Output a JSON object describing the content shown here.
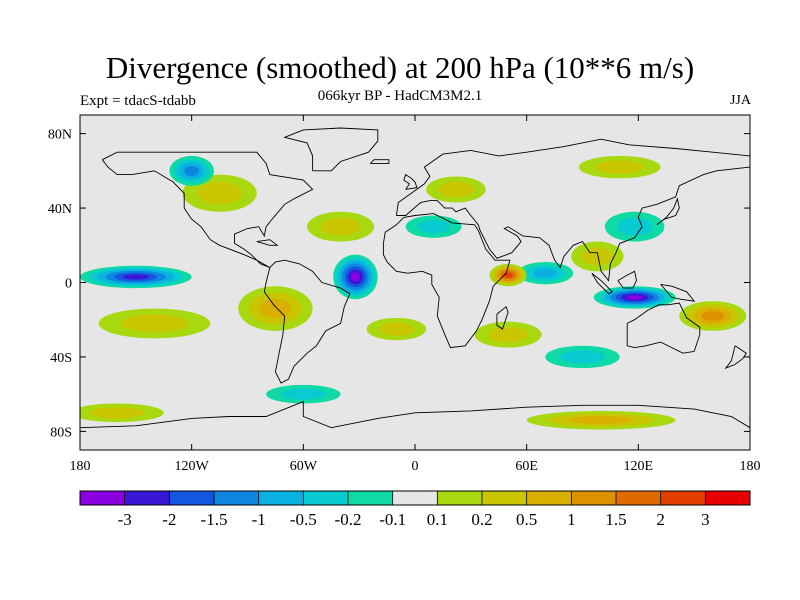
{
  "header": {
    "title": "Divergence (smoothed) at 200 hPa (10**6 m/s)",
    "subtitle": "066kyr BP - HadCM3M2.1",
    "experiment": "Expt = tdacS-tdabb",
    "season": "JJA"
  },
  "map_data": {
    "type": "filled-contour-map",
    "projection": "cylindrical-equidistant",
    "lon_range": [
      -180,
      180
    ],
    "lat_range": [
      -90,
      90
    ],
    "x_ticks": [
      {
        "lon": -180,
        "label": "180"
      },
      {
        "lon": -120,
        "label": "120W"
      },
      {
        "lon": -60,
        "label": "60W"
      },
      {
        "lon": 0,
        "label": "0"
      },
      {
        "lon": 60,
        "label": "60E"
      },
      {
        "lon": 120,
        "label": "120E"
      },
      {
        "lon": 180,
        "label": "180"
      }
    ],
    "y_ticks": [
      {
        "lat": 80,
        "label": "80N"
      },
      {
        "lat": 40,
        "label": "40N"
      },
      {
        "lat": 0,
        "label": "0"
      },
      {
        "lat": -40,
        "label": "40S"
      },
      {
        "lat": -80,
        "label": "80S"
      }
    ],
    "features": [
      {
        "name": "negative-pacific-east",
        "lon": -150,
        "lat": 3,
        "rlon": 30,
        "rlat": 6,
        "level": 1
      },
      {
        "name": "negative-atlantic",
        "lon": -32,
        "lat": 3,
        "rlon": 12,
        "rlat": 12,
        "level": 0
      },
      {
        "name": "negative-maritime",
        "lon": 118,
        "lat": -8,
        "rlon": 22,
        "rlat": 6,
        "level": 0
      },
      {
        "name": "negative-indian",
        "lon": 70,
        "lat": 5,
        "rlon": 15,
        "rlat": 6,
        "level": 4
      },
      {
        "name": "positive-africa-east",
        "lon": 50,
        "lat": 4,
        "rlon": 10,
        "rlat": 6,
        "level": 13
      },
      {
        "name": "positive-amazon",
        "lon": -75,
        "lat": -14,
        "rlon": 20,
        "rlat": 12,
        "level": 10
      },
      {
        "name": "positive-pacific-south",
        "lon": -140,
        "lat": -22,
        "rlon": 30,
        "rlat": 8,
        "level": 9
      },
      {
        "name": "positive-australia-east",
        "lon": 160,
        "lat": -18,
        "rlon": 18,
        "rlat": 8,
        "level": 11
      },
      {
        "name": "positive-india",
        "lon": 98,
        "lat": 14,
        "rlon": 14,
        "rlat": 8,
        "level": 9
      },
      {
        "name": "positive-namerica",
        "lon": -105,
        "lat": 48,
        "rlon": 20,
        "rlat": 10,
        "level": 9
      },
      {
        "name": "positive-atlantic-n",
        "lon": -40,
        "lat": 30,
        "rlon": 18,
        "rlat": 8,
        "level": 9
      },
      {
        "name": "positive-europe",
        "lon": 22,
        "lat": 50,
        "rlon": 16,
        "rlat": 7,
        "level": 9
      },
      {
        "name": "positive-siberia",
        "lon": 110,
        "lat": 62,
        "rlon": 22,
        "rlat": 6,
        "level": 9
      },
      {
        "name": "negative-nw-america",
        "lon": -120,
        "lat": 60,
        "rlon": 12,
        "rlat": 8,
        "level": 3
      },
      {
        "name": "negative-mediterranean",
        "lon": 10,
        "lat": 30,
        "rlon": 15,
        "rlat": 6,
        "level": 5
      },
      {
        "name": "negative-china",
        "lon": 118,
        "lat": 30,
        "rlon": 16,
        "rlat": 8,
        "level": 5
      },
      {
        "name": "positive-south-atlantic",
        "lon": -10,
        "lat": -25,
        "rlon": 16,
        "rlat": 6,
        "level": 9
      },
      {
        "name": "positive-s-indian",
        "lon": 50,
        "lat": -28,
        "rlon": 18,
        "rlat": 7,
        "level": 9
      },
      {
        "name": "negative-s-indian",
        "lon": 90,
        "lat": -40,
        "rlon": 20,
        "rlat": 6,
        "level": 5
      },
      {
        "name": "positive-antarctic-coast",
        "lon": 100,
        "lat": -74,
        "rlon": 40,
        "rlat": 5,
        "level": 10
      },
      {
        "name": "positive-southern-pacific",
        "lon": -160,
        "lat": -70,
        "rlon": 25,
        "rlat": 5,
        "level": 9
      },
      {
        "name": "negative-south-ocean",
        "lon": -60,
        "lat": -60,
        "rlon": 20,
        "rlat": 5,
        "level": 5
      }
    ]
  },
  "colorbar": {
    "colors": [
      "#8b00e0",
      "#3a16d6",
      "#1456e0",
      "#0e86e0",
      "#09b0e0",
      "#07cbd0",
      "#0fd9a5",
      "#e6e6e6",
      "#a8d910",
      "#c9c600",
      "#d9b000",
      "#dc9200",
      "#e06a00",
      "#e23e00",
      "#e80000"
    ],
    "labels": [
      "-3",
      "-2",
      "-1.5",
      "-1",
      "-0.5",
      "-0.2",
      "-0.1",
      "0.1",
      "0.2",
      "0.5",
      "1",
      "1.5",
      "2",
      "3"
    ]
  },
  "icons": {
    "coastline": "coastline-outline"
  }
}
